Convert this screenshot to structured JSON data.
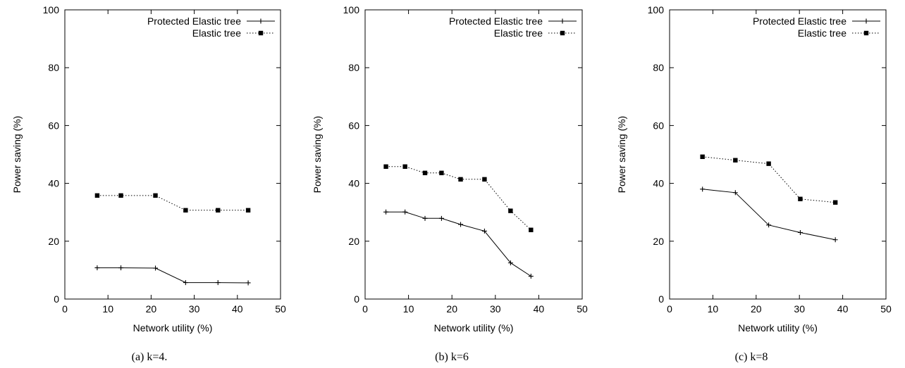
{
  "chart_data": [
    {
      "type": "line",
      "caption": "(a) k=4.",
      "xlabel": "Network utility (%)",
      "ylabel": "Power saving (%)",
      "xlim": [
        0,
        50
      ],
      "ylim": [
        0,
        100
      ],
      "xticks": [
        0,
        10,
        20,
        30,
        40,
        50
      ],
      "yticks": [
        0,
        20,
        40,
        60,
        80,
        100
      ],
      "grid": false,
      "legend_position": "top-right",
      "series": [
        {
          "name": "Protected Elastic tree",
          "marker": "plus",
          "style": "solid",
          "x": [
            7.5,
            13,
            21,
            28,
            35.5,
            42.5
          ],
          "y": [
            10.8,
            10.8,
            10.7,
            5.7,
            5.7,
            5.6
          ]
        },
        {
          "name": "Elastic tree",
          "marker": "square",
          "style": "dotted",
          "x": [
            7.5,
            13,
            21,
            28,
            35.5,
            42.5
          ],
          "y": [
            35.8,
            35.8,
            35.8,
            30.7,
            30.7,
            30.7
          ]
        }
      ]
    },
    {
      "type": "line",
      "caption": "(b) k=6",
      "xlabel": "Network utility (%)",
      "ylabel": "Power saving (%)",
      "xlim": [
        0,
        50
      ],
      "ylim": [
        0,
        100
      ],
      "xticks": [
        0,
        10,
        20,
        30,
        40,
        50
      ],
      "yticks": [
        0,
        20,
        40,
        60,
        80,
        100
      ],
      "grid": false,
      "legend_position": "top-right",
      "series": [
        {
          "name": "Protected Elastic tree",
          "marker": "plus",
          "style": "solid",
          "x": [
            4.8,
            9.2,
            13.8,
            17.6,
            22,
            27.5,
            33.5,
            38.2
          ],
          "y": [
            30.1,
            30.1,
            27.9,
            27.9,
            25.8,
            23.5,
            12.5,
            7.9
          ]
        },
        {
          "name": "Elastic tree",
          "marker": "square",
          "style": "dotted",
          "x": [
            4.8,
            9.2,
            13.8,
            17.6,
            22,
            27.5,
            33.5,
            38.2
          ],
          "y": [
            45.8,
            45.8,
            43.6,
            43.6,
            41.4,
            41.4,
            30.5,
            23.9
          ]
        }
      ]
    },
    {
      "type": "line",
      "caption": "(c) k=8",
      "xlabel": "Network utility (%)",
      "ylabel": "Power saving (%)",
      "xlim": [
        0,
        50
      ],
      "ylim": [
        0,
        100
      ],
      "xticks": [
        0,
        10,
        20,
        30,
        40,
        50
      ],
      "yticks": [
        0,
        20,
        40,
        60,
        80,
        100
      ],
      "grid": false,
      "legend_position": "top-right",
      "series": [
        {
          "name": "Protected Elastic tree",
          "marker": "plus",
          "style": "solid",
          "x": [
            7.6,
            15.2,
            22.9,
            30.2,
            38.3
          ],
          "y": [
            38,
            36.8,
            25.6,
            23,
            20.5
          ]
        },
        {
          "name": "Elastic tree",
          "marker": "square",
          "style": "dotted",
          "x": [
            7.6,
            15.2,
            22.9,
            30.2,
            38.3
          ],
          "y": [
            49.2,
            48,
            46.8,
            34.6,
            33.4
          ]
        }
      ]
    }
  ]
}
